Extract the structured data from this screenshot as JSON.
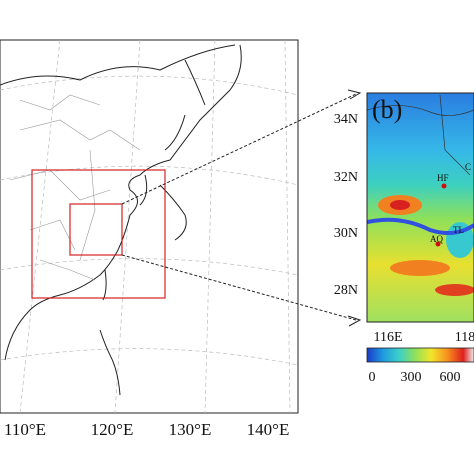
{
  "left_map": {
    "x_labels": [
      "110°E",
      "120°E",
      "130°E",
      "140°E"
    ]
  },
  "right_map": {
    "panel_label": "(b)",
    "y_labels": [
      "34N",
      "32N",
      "30N",
      "28N"
    ],
    "x_labels": [
      "116E",
      "118"
    ],
    "stations": [
      "HF",
      "AQ",
      "TL",
      "C"
    ]
  },
  "colorbar": {
    "labels": [
      "0",
      "300",
      "600"
    ]
  }
}
